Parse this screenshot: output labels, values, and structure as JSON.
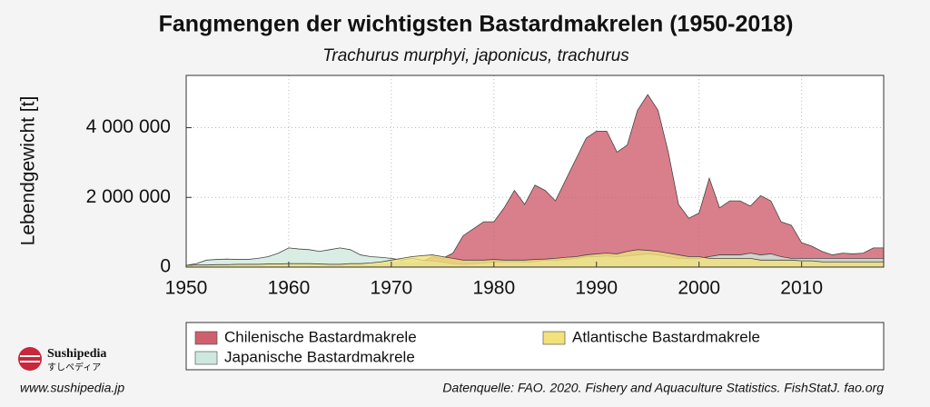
{
  "chart_data": {
    "type": "area",
    "title": "Fangmengen der wichtigsten Bastardmakrelen (1950-2018)",
    "subtitle": "Trachurus murphyi, japonicus, trachurus",
    "y_label": "Lebendgewicht [t]",
    "source": "Datenquelle: FAO. 2020. Fishery and Aquaculture Statistics. FishStatJ. fao.org",
    "x": [
      1950,
      1951,
      1952,
      1953,
      1954,
      1955,
      1956,
      1957,
      1958,
      1959,
      1960,
      1961,
      1962,
      1963,
      1964,
      1965,
      1966,
      1967,
      1968,
      1969,
      1970,
      1971,
      1972,
      1973,
      1974,
      1975,
      1976,
      1977,
      1978,
      1979,
      1980,
      1981,
      1982,
      1983,
      1984,
      1985,
      1986,
      1987,
      1988,
      1989,
      1990,
      1991,
      1992,
      1993,
      1994,
      1995,
      1996,
      1997,
      1998,
      1999,
      2000,
      2001,
      2002,
      2003,
      2004,
      2005,
      2006,
      2007,
      2008,
      2009,
      2010,
      2011,
      2012,
      2013,
      2014,
      2015,
      2016,
      2017,
      2018
    ],
    "series": [
      {
        "name": "Chilenische Bastardmakrele",
        "color": "#d05f6e",
        "values": [
          10000,
          10000,
          10000,
          10000,
          10000,
          10000,
          10000,
          10000,
          10000,
          10000,
          20000,
          20000,
          20000,
          20000,
          30000,
          30000,
          30000,
          40000,
          50000,
          60000,
          100000,
          150000,
          100000,
          150000,
          300000,
          250000,
          400000,
          900000,
          1100000,
          1300000,
          1300000,
          1700000,
          2200000,
          1800000,
          2350000,
          2200000,
          1900000,
          2500000,
          3100000,
          3700000,
          3900000,
          3900000,
          3300000,
          3500000,
          4500000,
          4950000,
          4500000,
          3300000,
          1800000,
          1400000,
          1550000,
          2550000,
          1700000,
          1900000,
          1900000,
          1750000,
          2050000,
          1900000,
          1300000,
          1200000,
          700000,
          600000,
          450000,
          350000,
          400000,
          380000,
          400000,
          550000,
          550000
        ]
      },
      {
        "name": "Japanische Bastardmakrele",
        "color": "#cfe8df",
        "values": [
          50000,
          100000,
          200000,
          220000,
          230000,
          220000,
          220000,
          250000,
          300000,
          400000,
          550000,
          520000,
          500000,
          450000,
          500000,
          550000,
          500000,
          350000,
          300000,
          280000,
          250000,
          200000,
          250000,
          200000,
          180000,
          150000,
          100000,
          80000,
          100000,
          120000,
          150000,
          150000,
          150000,
          140000,
          160000,
          200000,
          200000,
          220000,
          250000,
          300000,
          300000,
          320000,
          300000,
          320000,
          350000,
          380000,
          350000,
          300000,
          250000,
          250000,
          250000,
          300000,
          350000,
          350000,
          350000,
          400000,
          350000,
          380000,
          300000,
          250000,
          250000,
          250000,
          250000,
          250000,
          250000,
          250000,
          250000,
          250000,
          250000
        ]
      },
      {
        "name": "Atlantische Bastardmakrele",
        "color": "#f2e27a",
        "values": [
          50000,
          60000,
          60000,
          70000,
          70000,
          80000,
          80000,
          80000,
          90000,
          90000,
          100000,
          100000,
          100000,
          90000,
          80000,
          80000,
          100000,
          100000,
          120000,
          150000,
          200000,
          250000,
          300000,
          330000,
          350000,
          300000,
          250000,
          200000,
          200000,
          200000,
          220000,
          200000,
          200000,
          200000,
          220000,
          230000,
          250000,
          280000,
          300000,
          350000,
          380000,
          400000,
          380000,
          450000,
          500000,
          480000,
          450000,
          400000,
          350000,
          300000,
          300000,
          250000,
          250000,
          250000,
          250000,
          250000,
          200000,
          200000,
          200000,
          200000,
          180000,
          180000,
          150000,
          150000,
          150000,
          150000,
          150000,
          150000,
          150000
        ]
      }
    ],
    "xlim": [
      1950,
      2018
    ],
    "xticks": [
      1950,
      1960,
      1970,
      1980,
      1990,
      2000,
      2010
    ],
    "ylim": [
      0,
      5500000
    ],
    "yticks": [
      0,
      {
        "value": 2000000,
        "label": "2 000 000"
      },
      {
        "value": 4000000,
        "label": "4 000 000"
      }
    ],
    "grid": true
  },
  "logo": {
    "name": "Sushipedia",
    "subtitle": "すしペディア"
  },
  "website": "www.sushipedia.jp"
}
